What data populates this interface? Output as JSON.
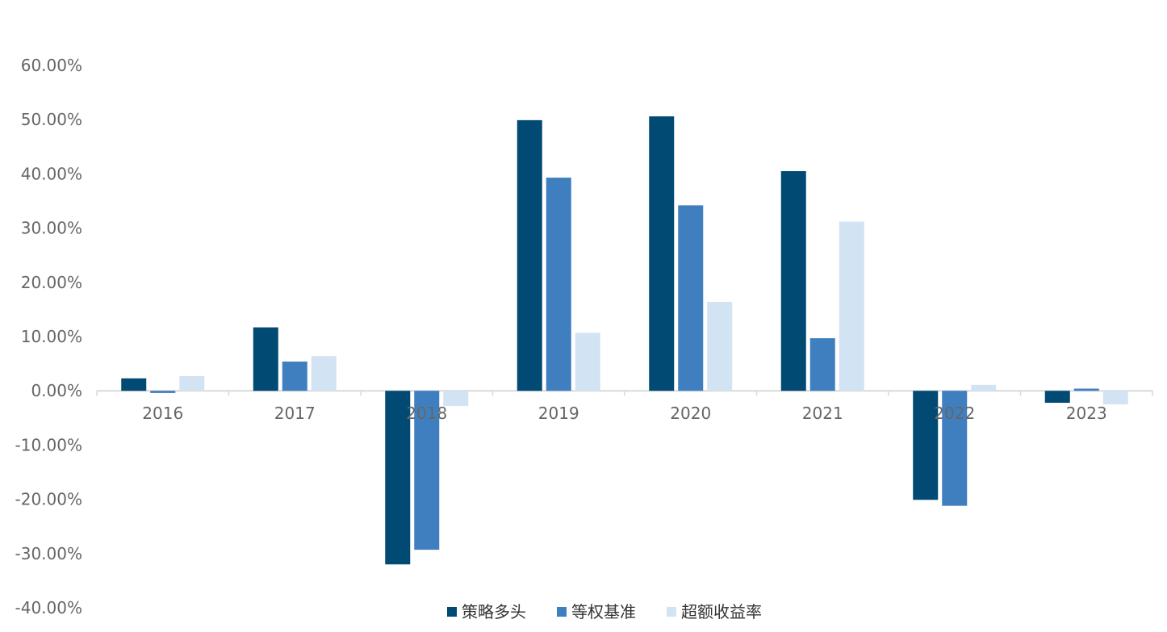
{
  "chart_data": {
    "type": "bar",
    "categories": [
      "2016",
      "2017",
      "2018",
      "2019",
      "2020",
      "2021",
      "2022",
      "2023"
    ],
    "series": [
      {
        "name": "策略多头",
        "color": "#004A73",
        "values": [
          2.3,
          11.7,
          -32.0,
          49.9,
          50.6,
          40.5,
          -20.1,
          -2.2
        ]
      },
      {
        "name": "等权基准",
        "color": "#3F7FBF",
        "values": [
          -0.4,
          5.4,
          -29.3,
          39.3,
          34.2,
          9.7,
          -21.2,
          0.4
        ]
      },
      {
        "name": "超额收益率",
        "color": "#D2E3F3",
        "values": [
          2.7,
          6.4,
          -2.8,
          10.7,
          16.4,
          31.2,
          1.1,
          -2.5
        ]
      }
    ],
    "yticks": [
      "60.00%",
      "50.00%",
      "40.00%",
      "30.00%",
      "20.00%",
      "10.00%",
      "0.00%",
      "-10.00%",
      "-20.00%",
      "-30.00%",
      "-40.00%"
    ],
    "ylim": [
      -40,
      60
    ],
    "grid": false,
    "legend_position": "bottom"
  }
}
